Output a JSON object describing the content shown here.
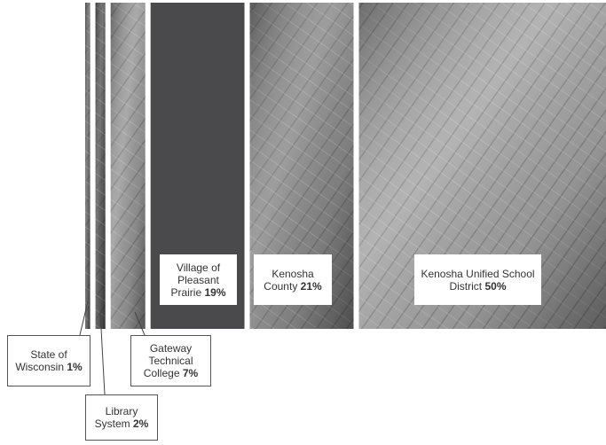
{
  "chart_data": {
    "type": "proportion-bar",
    "categories": [
      "State of Wisconsin",
      "Library System",
      "Gateway Technical College",
      "Village of Pleasant Prairie",
      "Kenosha County",
      "Kenosha Unified School District"
    ],
    "values": [
      1,
      2,
      7,
      19,
      21,
      50
    ],
    "value_labels": [
      "1%",
      "2%",
      "7%",
      "19%",
      "21%",
      "50%"
    ],
    "colors": [
      "#6e6e6e",
      "#5e5e5e",
      "#9a9a9a",
      "#4a4a4c",
      "#8c8c8c",
      "#a6a6a6"
    ]
  }
}
